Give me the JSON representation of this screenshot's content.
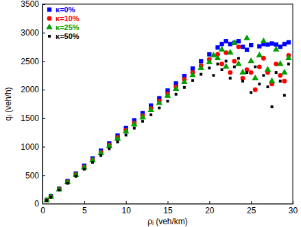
{
  "chart_data": {
    "type": "scatter",
    "x_label": "ρᵢ (veh/km)",
    "y_label": "qᵢ (veh/h)",
    "xlim": [
      0,
      30
    ],
    "xticks": [
      0,
      5,
      10,
      15,
      20,
      25,
      30
    ],
    "ylim": [
      0,
      3500
    ],
    "yticks": [
      0,
      500,
      1000,
      1500,
      2000,
      2500,
      3000,
      3500
    ],
    "legend": "upper left",
    "series": [
      {
        "name": "κ=0%",
        "color": "#0000ff",
        "marker": "square",
        "x": [
          0.5,
          1,
          2,
          3,
          4,
          5,
          6,
          7,
          8,
          9,
          10,
          11,
          12,
          13,
          14,
          15,
          16,
          17,
          18,
          19,
          20,
          21,
          21.5,
          22,
          22.5,
          23,
          23.5,
          24,
          24.5,
          25,
          26,
          26.5,
          27,
          27.5,
          28,
          28.5,
          29,
          29.5
        ],
        "values": [
          65,
          130,
          265,
          395,
          530,
          665,
          795,
          930,
          1060,
          1195,
          1330,
          1460,
          1590,
          1720,
          1850,
          1985,
          2110,
          2240,
          2370,
          2500,
          2620,
          2740,
          2800,
          2850,
          2800,
          2820,
          2850,
          2750,
          2700,
          2780,
          2760,
          2800,
          2790,
          2810,
          2790,
          2750,
          2800,
          2830
        ]
      },
      {
        "name": "κ=10%",
        "color": "#ff0000",
        "marker": "circle",
        "x": [
          0.5,
          1,
          2,
          3,
          4,
          5,
          6,
          7,
          8,
          9,
          10,
          11,
          12,
          13,
          14,
          15,
          16,
          17,
          18,
          19,
          20,
          21,
          21.5,
          22,
          22.5,
          23,
          23.5,
          24,
          24.5,
          25,
          25.5,
          26,
          26.5,
          27,
          27.5,
          28,
          28.5,
          29,
          29.5
        ],
        "values": [
          62,
          125,
          255,
          385,
          515,
          645,
          770,
          900,
          1030,
          1160,
          1290,
          1415,
          1545,
          1670,
          1800,
          1925,
          2050,
          2180,
          2300,
          2420,
          2530,
          2620,
          2450,
          2650,
          2300,
          2500,
          2750,
          2200,
          2350,
          2300,
          2000,
          2400,
          2550,
          2300,
          2100,
          2450,
          2250,
          2150,
          2600
        ]
      },
      {
        "name": "κ=25%",
        "color": "#00a000",
        "marker": "triangle",
        "x": [
          0.5,
          1,
          2,
          3,
          4,
          5,
          6,
          7,
          8,
          9,
          10,
          11,
          12,
          13,
          14,
          15,
          16,
          17,
          18,
          19,
          20,
          20.5,
          21,
          21.5,
          22,
          22.5,
          23,
          23.5,
          24,
          24.5,
          25,
          25.5,
          26,
          26.5,
          27,
          27.5,
          28,
          28.5,
          29,
          29.5
        ],
        "values": [
          60,
          122,
          250,
          378,
          505,
          632,
          760,
          885,
          1010,
          1140,
          1265,
          1390,
          1515,
          1640,
          1765,
          1890,
          2010,
          2130,
          2250,
          2380,
          2480,
          2600,
          2550,
          2700,
          2400,
          2650,
          2820,
          2450,
          2300,
          2900,
          2500,
          2200,
          2600,
          2850,
          2350,
          2150,
          2700,
          2450,
          2300,
          2550
        ]
      },
      {
        "name": "κ=50%",
        "color": "#000000",
        "marker": "point",
        "x": [
          0.5,
          1,
          2,
          3,
          4,
          5,
          6,
          7,
          8,
          9,
          10,
          11,
          12,
          13,
          14,
          15,
          16,
          17,
          18,
          19,
          20,
          20.5,
          21,
          21.5,
          22,
          22.5,
          23,
          23.5,
          24,
          24.5,
          25,
          25.5,
          26,
          26.5,
          27,
          27.5,
          28,
          28.5,
          29,
          29.5
        ],
        "values": [
          58,
          118,
          240,
          360,
          482,
          605,
          725,
          845,
          965,
          1085,
          1205,
          1325,
          1445,
          1560,
          1680,
          1800,
          1920,
          2040,
          2160,
          2270,
          2380,
          2250,
          2450,
          2350,
          2500,
          2200,
          2400,
          2550,
          2150,
          2300,
          1950,
          2400,
          2100,
          2250,
          2050,
          1700,
          2300,
          2150,
          1900,
          2450
        ]
      }
    ]
  }
}
